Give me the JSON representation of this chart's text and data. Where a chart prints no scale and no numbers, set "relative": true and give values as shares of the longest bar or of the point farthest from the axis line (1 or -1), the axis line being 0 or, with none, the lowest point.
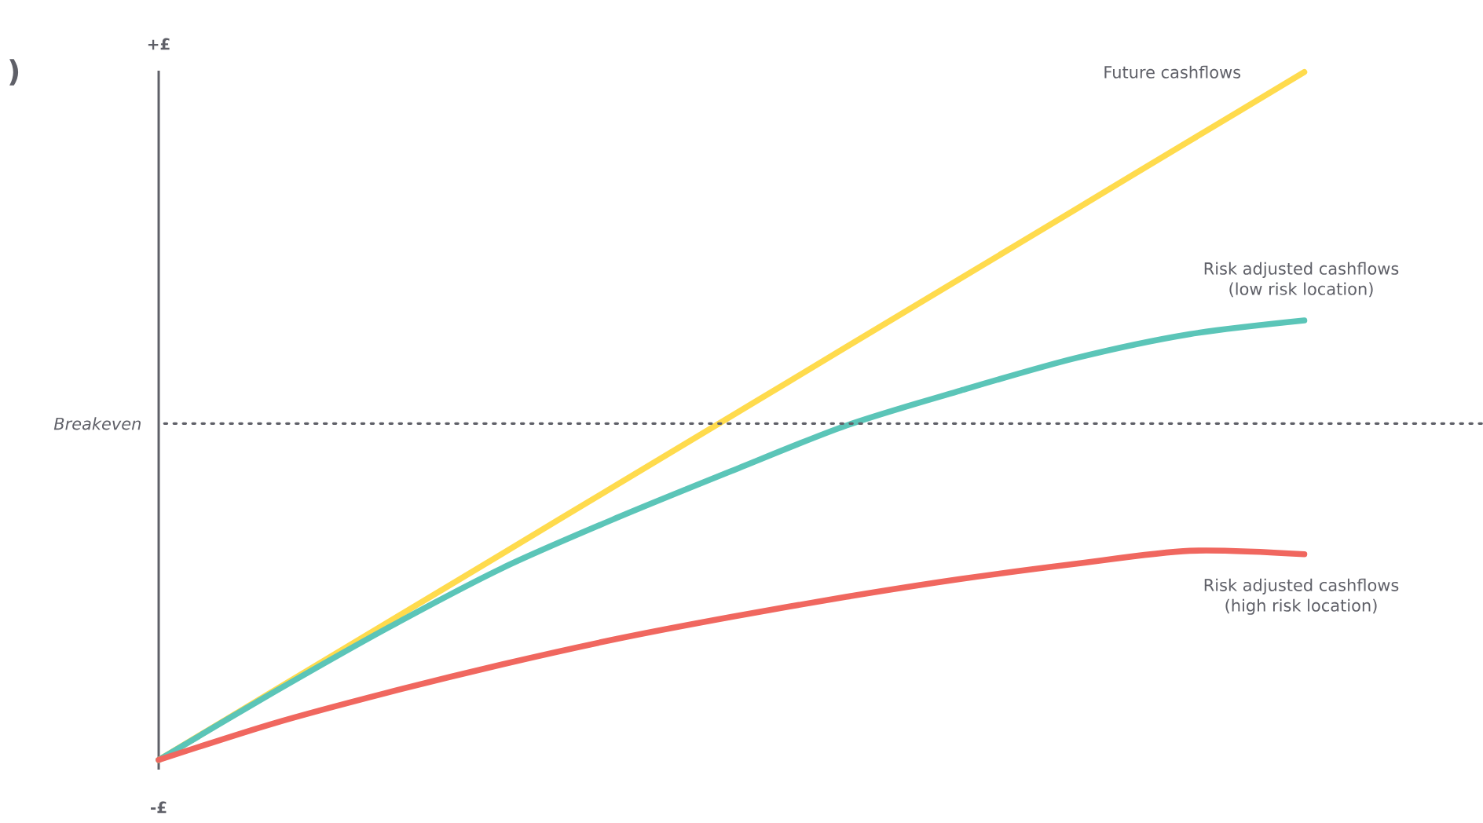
{
  "chart_data": {
    "type": "line",
    "relative": true,
    "marker": "none",
    "line_style": "solid",
    "categories": [
      null,
      null,
      null,
      null,
      null,
      null,
      null,
      null,
      null,
      null,
      null
    ],
    "series": [
      {
        "name": "Future cashflows",
        "color": "#ffdb4d",
        "values": [
          0,
          0.1,
          0.2,
          0.3,
          0.4,
          0.5,
          0.6,
          0.7,
          0.8,
          0.9,
          1.0
        ]
      },
      {
        "name": "Risk adjusted cashflows\n(low risk location)",
        "color": "#5bc5b8",
        "values": [
          0,
          0.098,
          0.192,
          0.279,
          0.352,
          0.42,
          0.486,
          0.537,
          0.584,
          0.619,
          0.639
        ]
      },
      {
        "name": "Risk adjusted cashflows\n(high risk location)",
        "color": "#f0675f",
        "values": [
          0,
          0.053,
          0.098,
          0.139,
          0.176,
          0.208,
          0.237,
          0.263,
          0.285,
          0.304,
          0.299
        ]
      }
    ],
    "ref_lines": [
      {
        "axis": "y",
        "value": 0.489,
        "label": "Breakeven",
        "color": "#5f6068",
        "line_style": "dotted"
      }
    ],
    "annotations": [
      ")",
      "+£",
      "-£"
    ]
  }
}
